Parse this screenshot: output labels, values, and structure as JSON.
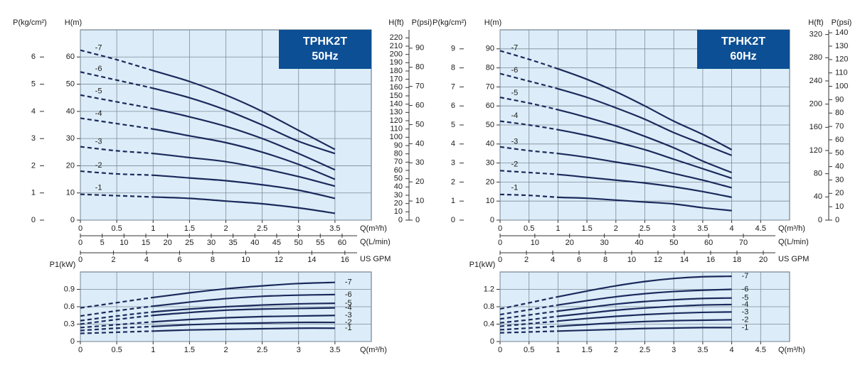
{
  "chart_data": [
    {
      "type": "line",
      "title": "TPHK2T",
      "subtitle": "50Hz",
      "y_label": "H(m)",
      "x_label": "Q(m³/h)",
      "xlim": [
        0,
        4
      ],
      "xticks": [
        0,
        0.5,
        1,
        1.5,
        2,
        2.5,
        3,
        3.5
      ],
      "ylim": [
        0,
        70
      ],
      "yticks": [
        0,
        10,
        20,
        30,
        40,
        50,
        60
      ],
      "grid": true,
      "background": "#dcedf9",
      "dashed_below_x": 1,
      "series_label_position": "start",
      "x": [
        0,
        0.5,
        1,
        1.5,
        2,
        2.5,
        3,
        3.5
      ],
      "series": [
        {
          "name": "-7",
          "color": "#1b2a5c",
          "values": [
            62.5,
            59,
            55,
            51,
            46,
            40,
            33,
            26
          ]
        },
        {
          "name": "-6",
          "color": "#1b2a5c",
          "values": [
            54.5,
            51.5,
            48.5,
            45,
            40.5,
            35,
            29,
            24.5
          ]
        },
        {
          "name": "-5",
          "color": "#1b2a5c",
          "values": [
            46,
            43.5,
            41,
            38,
            34.5,
            30,
            24.5,
            18.5
          ]
        },
        {
          "name": "-4",
          "color": "#1b2a5c",
          "values": [
            37.5,
            35.5,
            33.5,
            31,
            28.5,
            25,
            20.5,
            15
          ]
        },
        {
          "name": "-3",
          "color": "#1b2a5c",
          "values": [
            27,
            25.5,
            24.5,
            23,
            21.5,
            19,
            16,
            12.5
          ]
        },
        {
          "name": "-2",
          "color": "#1b2a5c",
          "values": [
            18,
            17,
            16.5,
            15.5,
            14.5,
            13,
            11,
            8
          ]
        },
        {
          "name": "-1",
          "color": "#1b2a5c",
          "values": [
            9.5,
            9,
            8.5,
            8,
            7,
            6,
            4.5,
            2.5
          ]
        }
      ],
      "left_axes": [
        {
          "label": "P(kg/cm²)",
          "lim": [
            0,
            7
          ],
          "ticks": [
            0,
            1,
            2,
            3,
            4,
            5,
            6
          ]
        }
      ],
      "right_axes": [
        {
          "label": "H(ft)",
          "lim": [
            0,
            229.7
          ],
          "ticks": [
            0,
            10,
            20,
            30,
            40,
            50,
            60,
            70,
            80,
            90,
            100,
            110,
            120,
            130,
            140,
            150,
            160,
            170,
            180,
            190,
            200,
            210,
            220
          ]
        },
        {
          "label": "P(psi)",
          "lim": [
            0,
            99.6
          ],
          "ticks": [
            0,
            10,
            20,
            30,
            40,
            50,
            60,
            70,
            80,
            90
          ]
        }
      ],
      "x_axes": [
        {
          "label": "Q(L/min)",
          "lim": [
            0,
            66.7
          ],
          "ticks": [
            0,
            5,
            10,
            15,
            20,
            25,
            30,
            35,
            40,
            45,
            50,
            55,
            60
          ]
        },
        {
          "label": "US GPM",
          "lim": [
            0,
            17.6
          ],
          "ticks": [
            0,
            2,
            4,
            6,
            8,
            10,
            12,
            14,
            16
          ]
        }
      ]
    },
    {
      "type": "line",
      "y_label": "P1(kW)",
      "x_label": "Q(m³/h)",
      "xlim": [
        0,
        4
      ],
      "xticks": [
        0,
        0.5,
        1,
        1.5,
        2,
        2.5,
        3,
        3.5
      ],
      "ylim": [
        0,
        1.2
      ],
      "yticks": [
        0,
        0.3,
        0.6,
        0.9
      ],
      "grid": true,
      "background": "#dcedf9",
      "dashed_below_x": 1,
      "series_label_position": "end",
      "x": [
        0,
        0.5,
        1,
        1.5,
        2,
        2.5,
        3,
        3.5
      ],
      "series": [
        {
          "name": "-7",
          "color": "#1b2a5c",
          "values": [
            0.58,
            0.67,
            0.76,
            0.84,
            0.91,
            0.96,
            1.0,
            1.02
          ]
        },
        {
          "name": "-6",
          "color": "#1b2a5c",
          "values": [
            0.44,
            0.53,
            0.61,
            0.68,
            0.74,
            0.78,
            0.8,
            0.81
          ]
        },
        {
          "name": "-5",
          "color": "#1b2a5c",
          "values": [
            0.36,
            0.44,
            0.51,
            0.56,
            0.6,
            0.63,
            0.65,
            0.66
          ]
        },
        {
          "name": "-4",
          "color": "#1b2a5c",
          "values": [
            0.3,
            0.38,
            0.45,
            0.5,
            0.54,
            0.56,
            0.57,
            0.58
          ]
        },
        {
          "name": "-3",
          "color": "#1b2a5c",
          "values": [
            0.24,
            0.29,
            0.34,
            0.38,
            0.41,
            0.43,
            0.44,
            0.45
          ]
        },
        {
          "name": "-2",
          "color": "#1b2a5c",
          "values": [
            0.19,
            0.23,
            0.26,
            0.29,
            0.31,
            0.32,
            0.33,
            0.33
          ]
        },
        {
          "name": "-1",
          "color": "#1b2a5c",
          "values": [
            0.14,
            0.16,
            0.18,
            0.2,
            0.21,
            0.22,
            0.23,
            0.23
          ]
        }
      ]
    },
    {
      "type": "line",
      "title": "TPHK2T",
      "subtitle": "60Hz",
      "y_label": "H(m)",
      "x_label": "Q(m³/h)",
      "xlim": [
        0,
        5
      ],
      "xticks": [
        0,
        0.5,
        1,
        1.5,
        2,
        2.5,
        3,
        3.5,
        4,
        4.5
      ],
      "ylim": [
        0,
        100
      ],
      "yticks": [
        0,
        10,
        20,
        30,
        40,
        50,
        60,
        70,
        80,
        90
      ],
      "grid": true,
      "background": "#dcedf9",
      "dashed_below_x": 1,
      "series_label_position": "start",
      "x": [
        0,
        0.5,
        1,
        1.5,
        2,
        2.5,
        3,
        3.5,
        4
      ],
      "series": [
        {
          "name": "-7",
          "color": "#1b2a5c",
          "values": [
            89,
            84.5,
            79.5,
            74,
            67.5,
            60,
            52,
            45,
            37
          ]
        },
        {
          "name": "-6",
          "color": "#1b2a5c",
          "values": [
            77,
            73,
            69,
            64.5,
            59,
            53,
            46,
            40,
            34
          ]
        },
        {
          "name": "-5",
          "color": "#1b2a5c",
          "values": [
            64.5,
            61.5,
            58,
            54,
            49.5,
            44,
            38,
            31,
            25
          ]
        },
        {
          "name": "-4",
          "color": "#1b2a5c",
          "values": [
            52,
            50,
            47.5,
            44.5,
            41,
            37,
            32,
            27,
            22
          ]
        },
        {
          "name": "-3",
          "color": "#1b2a5c",
          "values": [
            38.5,
            36.5,
            35,
            33,
            30.5,
            28,
            24.5,
            21,
            17
          ]
        },
        {
          "name": "-2",
          "color": "#1b2a5c",
          "values": [
            26,
            25,
            24,
            22.5,
            21,
            19.5,
            17.5,
            15,
            12
          ]
        },
        {
          "name": "-1",
          "color": "#1b2a5c",
          "values": [
            13.5,
            13,
            12,
            11.5,
            10.5,
            9.5,
            8.5,
            6.5,
            5
          ]
        }
      ],
      "left_axes": [
        {
          "label": "P(kg/cm²)",
          "lim": [
            0,
            10
          ],
          "ticks": [
            0,
            1,
            2,
            3,
            4,
            5,
            6,
            7,
            8,
            9
          ]
        }
      ],
      "right_axes": [
        {
          "label": "H(ft)",
          "lim": [
            0,
            328.1
          ],
          "ticks": [
            0,
            40,
            80,
            120,
            160,
            200,
            240,
            280,
            320
          ]
        },
        {
          "label": "P(psi)",
          "lim": [
            0,
            142.2
          ],
          "ticks": [
            0,
            10,
            20,
            30,
            40,
            50,
            60,
            70,
            80,
            90,
            100,
            110,
            120,
            130,
            140
          ]
        }
      ],
      "x_axes": [
        {
          "label": "Q(L/min)",
          "lim": [
            0,
            83.3
          ],
          "ticks": [
            0,
            10,
            20,
            30,
            40,
            50,
            60,
            70
          ]
        },
        {
          "label": "US GPM",
          "lim": [
            0,
            22
          ],
          "ticks": [
            0,
            2,
            4,
            6,
            8,
            10,
            12,
            14,
            16,
            18,
            20
          ]
        }
      ]
    },
    {
      "type": "line",
      "y_label": "P1(kW)",
      "x_label": "Q(m³/h)",
      "xlim": [
        0,
        5
      ],
      "xticks": [
        0,
        0.5,
        1,
        1.5,
        2,
        2.5,
        3,
        3.5,
        4,
        4.5
      ],
      "ylim": [
        0,
        1.6
      ],
      "yticks": [
        0,
        0.4,
        0.8,
        1.2
      ],
      "grid": true,
      "background": "#dcedf9",
      "dashed_below_x": 1,
      "series_label_position": "end",
      "x": [
        0,
        0.5,
        1,
        1.5,
        2,
        2.5,
        3,
        3.5,
        4
      ],
      "series": [
        {
          "name": "-7",
          "color": "#1b2a5c",
          "values": [
            0.75,
            0.89,
            1.03,
            1.16,
            1.28,
            1.38,
            1.45,
            1.49,
            1.5
          ]
        },
        {
          "name": "-6",
          "color": "#1b2a5c",
          "values": [
            0.62,
            0.73,
            0.84,
            0.94,
            1.03,
            1.1,
            1.15,
            1.18,
            1.2
          ]
        },
        {
          "name": "-5",
          "color": "#1b2a5c",
          "values": [
            0.52,
            0.61,
            0.7,
            0.78,
            0.86,
            0.92,
            0.96,
            0.99,
            1.0
          ]
        },
        {
          "name": "-4",
          "color": "#1b2a5c",
          "values": [
            0.43,
            0.5,
            0.58,
            0.65,
            0.72,
            0.77,
            0.81,
            0.84,
            0.85
          ]
        },
        {
          "name": "-3",
          "color": "#1b2a5c",
          "values": [
            0.35,
            0.41,
            0.47,
            0.53,
            0.58,
            0.62,
            0.65,
            0.67,
            0.68
          ]
        },
        {
          "name": "-2",
          "color": "#1b2a5c",
          "values": [
            0.27,
            0.31,
            0.35,
            0.39,
            0.43,
            0.46,
            0.48,
            0.49,
            0.5
          ]
        },
        {
          "name": "-1",
          "color": "#1b2a5c",
          "values": [
            0.2,
            0.22,
            0.24,
            0.26,
            0.28,
            0.3,
            0.31,
            0.32,
            0.32
          ]
        }
      ]
    }
  ]
}
